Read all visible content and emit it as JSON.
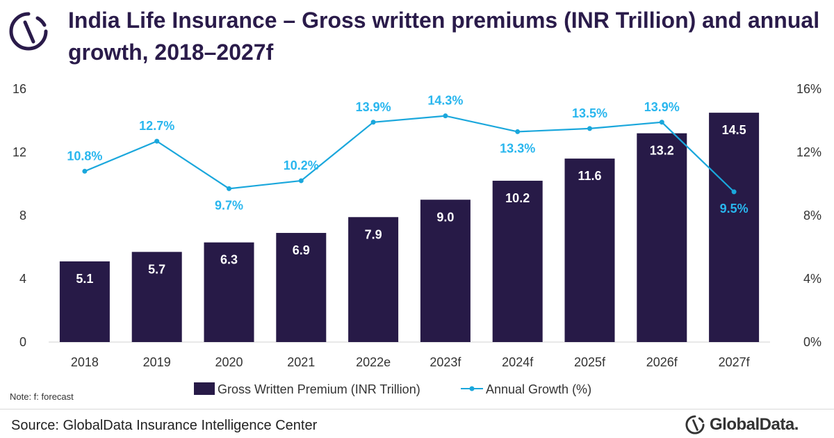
{
  "header": {
    "title": "India Life Insurance – Gross written premiums (INR Trillion) and annual growth, 2018–2027f"
  },
  "footer": {
    "note": "Note: f: forecast",
    "source": "Source: GlobalData Insurance Intelligence Center",
    "brand": "GlobalData."
  },
  "colors": {
    "bar": "#271a47",
    "line": "#1aa7dc",
    "line_label": "#29b6ee",
    "bar_label": "#ffffff",
    "title": "#2a1b4a"
  },
  "icons": {
    "logo": "globaldata-logo-icon"
  },
  "chart_data": {
    "type": "bar",
    "categories": [
      "2018",
      "2019",
      "2020",
      "2021",
      "2022e",
      "2023f",
      "2024f",
      "2025f",
      "2026f",
      "2027f"
    ],
    "series": [
      {
        "name": "Gross Written Premium (INR Trillion)",
        "type": "bar",
        "axis": "left",
        "values": [
          5.1,
          5.7,
          6.3,
          6.9,
          7.9,
          9.0,
          10.2,
          11.6,
          13.2,
          14.5
        ],
        "labels": [
          "5.1",
          "5.7",
          "6.3",
          "6.9",
          "7.9",
          "9.0",
          "10.2",
          "11.6",
          "13.2",
          "14.5"
        ]
      },
      {
        "name": "Annual Growth (%)",
        "type": "line",
        "axis": "right",
        "values": [
          10.8,
          12.7,
          9.7,
          10.2,
          13.9,
          14.3,
          13.3,
          13.5,
          13.9,
          9.5
        ],
        "labels": [
          "10.8%",
          "12.7%",
          "9.7%",
          "10.2%",
          "13.9%",
          "14.3%",
          "13.3%",
          "13.5%",
          "13.9%",
          "9.5%"
        ]
      }
    ],
    "y_left": {
      "ylim": [
        0,
        16
      ],
      "ticks": [
        "0",
        "4",
        "8",
        "12",
        "16"
      ]
    },
    "y_right": {
      "ylim": [
        0,
        16
      ],
      "ticks": [
        "0%",
        "4%",
        "8%",
        "12%",
        "16%"
      ]
    },
    "grid": false,
    "legend_position": "bottom"
  }
}
